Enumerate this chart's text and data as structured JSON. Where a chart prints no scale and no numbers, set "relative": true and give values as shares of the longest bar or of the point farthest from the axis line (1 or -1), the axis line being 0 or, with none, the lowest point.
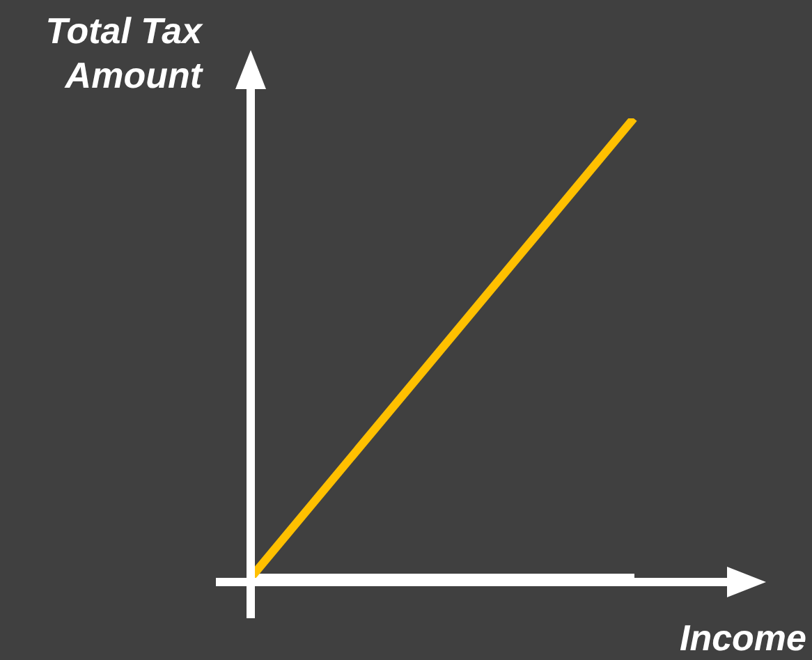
{
  "chart_data": {
    "type": "line",
    "xlabel": "Income",
    "ylabel": "Total Tax Amount",
    "relative": true,
    "categories": [
      null,
      null
    ],
    "series": [
      {
        "color": "#ffc000",
        "values": [
          0,
          1
        ]
      }
    ],
    "marker": "none"
  }
}
